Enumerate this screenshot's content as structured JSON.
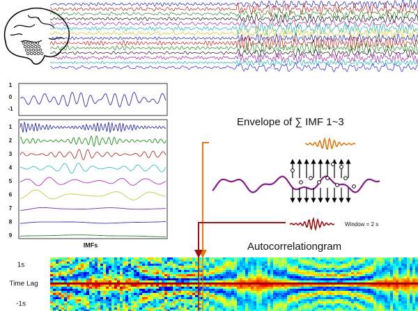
{
  "left_panel": {
    "signal_ticks": [
      "1",
      "0",
      "-1"
    ],
    "imf_labels": [
      "1",
      "2",
      "3",
      "4",
      "5",
      "6",
      "7",
      "8",
      "9"
    ],
    "imf_caption": "IMFs"
  },
  "right_panel": {
    "envelope_title": "Envelope of ∑ IMF 1~3",
    "window_label": "Window = 2 s",
    "autocorrelogram_title": "Autocorrelationgram"
  },
  "heatmap": {
    "y_labels": [
      "1s",
      "Time Lag",
      "-1s"
    ]
  }
}
